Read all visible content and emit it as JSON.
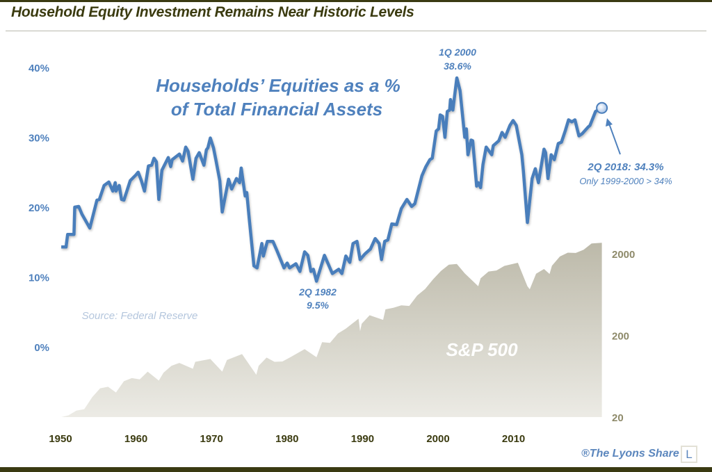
{
  "header": {
    "title": "Household Equity Investment Remains Near Historic Levels"
  },
  "footer": {
    "credit": "®The Lyons Share",
    "logo_letter": "L"
  },
  "colors": {
    "line": "#4a7ebb",
    "area": "#c2c0b3",
    "title": "#3b3b10",
    "left_axis": "#4f81bd",
    "right_axis": "#8e8a6a",
    "x_axis": "#3b3b10"
  },
  "chart_data": {
    "type": "line",
    "title": "Households’ Equities as a % of Total Financial Assets",
    "title_lines": [
      "Households’ Equities as a %",
      "of Total Financial Assets"
    ],
    "source": "Source: Federal Reserve",
    "x_ticks": [
      "1950",
      "1960",
      "1970",
      "1980",
      "1990",
      "2000",
      "2010"
    ],
    "xlim": [
      1950,
      2019
    ],
    "y_left": {
      "ticks": [
        "0%",
        "10%",
        "20%",
        "30%",
        "40%"
      ],
      "values": [
        0,
        10,
        20,
        30,
        40
      ],
      "ylim": [
        0,
        40
      ]
    },
    "y_right": {
      "scale": "log",
      "ticks": [
        "20",
        "200",
        "2000"
      ],
      "values": [
        20,
        200,
        2000
      ]
    },
    "grid": false,
    "series": [
      {
        "name": "Households' Equities % of Total Financial Assets",
        "axis": "left",
        "type": "line",
        "points": [
          [
            1950.1,
            14.4
          ],
          [
            1950.7,
            14.4
          ],
          [
            1950.9,
            16.2
          ],
          [
            1951.7,
            16.2
          ],
          [
            1951.8,
            20.1
          ],
          [
            1952.3,
            20.2
          ],
          [
            1952.7,
            19.1
          ],
          [
            1953.7,
            17.1
          ],
          [
            1954.6,
            21.1
          ],
          [
            1954.9,
            21.2
          ],
          [
            1955.5,
            23.2
          ],
          [
            1956.1,
            23.7
          ],
          [
            1956.6,
            22.4
          ],
          [
            1956.9,
            23.6
          ],
          [
            1957.0,
            22.4
          ],
          [
            1957.4,
            23.2
          ],
          [
            1957.7,
            21.2
          ],
          [
            1958.0,
            21.1
          ],
          [
            1958.8,
            23.9
          ],
          [
            1959.5,
            24.7
          ],
          [
            1959.8,
            25.1
          ],
          [
            1960.2,
            23.9
          ],
          [
            1960.6,
            22.4
          ],
          [
            1961.1,
            26.0
          ],
          [
            1961.5,
            26.1
          ],
          [
            1961.8,
            27.1
          ],
          [
            1962.1,
            26.6
          ],
          [
            1962.4,
            21.2
          ],
          [
            1962.8,
            25.4
          ],
          [
            1963.6,
            27.2
          ],
          [
            1963.9,
            25.9
          ],
          [
            1964.1,
            26.9
          ],
          [
            1965.0,
            27.7
          ],
          [
            1965.4,
            26.7
          ],
          [
            1965.8,
            28.7
          ],
          [
            1966.1,
            28.1
          ],
          [
            1966.7,
            24.1
          ],
          [
            1967.1,
            27.1
          ],
          [
            1967.5,
            27.9
          ],
          [
            1968.1,
            26.1
          ],
          [
            1968.4,
            28.3
          ],
          [
            1968.6,
            28.6
          ],
          [
            1968.9,
            30.0
          ],
          [
            1969.3,
            28.6
          ],
          [
            1969.6,
            26.9
          ],
          [
            1970.1,
            23.9
          ],
          [
            1970.4,
            19.4
          ],
          [
            1971.2,
            24.1
          ],
          [
            1971.6,
            22.7
          ],
          [
            1972.2,
            24.2
          ],
          [
            1972.6,
            23.6
          ],
          [
            1972.8,
            25.7
          ],
          [
            1973.3,
            21.7
          ],
          [
            1973.5,
            22.2
          ],
          [
            1973.8,
            18.6
          ],
          [
            1974.4,
            11.7
          ],
          [
            1974.8,
            11.4
          ],
          [
            1975.4,
            14.9
          ],
          [
            1975.6,
            13.1
          ],
          [
            1976.1,
            15.2
          ],
          [
            1976.8,
            15.2
          ],
          [
            1977.3,
            13.9
          ],
          [
            1978.2,
            11.4
          ],
          [
            1978.6,
            12.1
          ],
          [
            1978.9,
            11.4
          ],
          [
            1979.7,
            12.0
          ],
          [
            1980.2,
            10.9
          ],
          [
            1980.8,
            13.7
          ],
          [
            1981.2,
            13.2
          ],
          [
            1981.6,
            10.9
          ],
          [
            1981.9,
            11.2
          ],
          [
            1982.3,
            9.5
          ],
          [
            1983.3,
            13.2
          ],
          [
            1984.3,
            10.6
          ],
          [
            1985.1,
            11.2
          ],
          [
            1985.5,
            10.6
          ],
          [
            1986.0,
            13.1
          ],
          [
            1986.5,
            12.2
          ],
          [
            1986.9,
            14.9
          ],
          [
            1987.4,
            15.2
          ],
          [
            1987.8,
            12.6
          ],
          [
            1988.4,
            13.4
          ],
          [
            1989.1,
            14.1
          ],
          [
            1989.7,
            15.6
          ],
          [
            1990.2,
            14.9
          ],
          [
            1990.5,
            12.6
          ],
          [
            1990.9,
            15.2
          ],
          [
            1991.3,
            15.4
          ],
          [
            1991.8,
            17.7
          ],
          [
            1992.4,
            17.6
          ],
          [
            1993.0,
            19.9
          ],
          [
            1993.7,
            21.2
          ],
          [
            1994.3,
            20.2
          ],
          [
            1994.7,
            20.6
          ],
          [
            1995.6,
            24.6
          ],
          [
            1996.1,
            25.9
          ],
          [
            1996.6,
            26.9
          ],
          [
            1996.9,
            27.1
          ],
          [
            1997.4,
            31.0
          ],
          [
            1997.7,
            31.3
          ],
          [
            1997.9,
            33.3
          ],
          [
            1998.2,
            33.1
          ],
          [
            1998.5,
            30.1
          ],
          [
            1998.8,
            33.8
          ],
          [
            1999.1,
            34.0
          ],
          [
            1999.2,
            35.5
          ],
          [
            1999.5,
            34.0
          ],
          [
            2000.0,
            38.6
          ],
          [
            2000.4,
            36.8
          ],
          [
            2001.0,
            30.1
          ],
          [
            2001.2,
            31.3
          ],
          [
            2001.4,
            27.6
          ],
          [
            2001.8,
            29.7
          ],
          [
            2002.0,
            29.6
          ],
          [
            2002.5,
            23.1
          ],
          [
            2002.7,
            23.6
          ],
          [
            2003.0,
            22.9
          ],
          [
            2003.3,
            26.2
          ],
          [
            2003.7,
            28.7
          ],
          [
            2004.4,
            27.6
          ],
          [
            2004.6,
            28.9
          ],
          [
            2005.3,
            29.6
          ],
          [
            2005.7,
            30.8
          ],
          [
            2006.1,
            30.1
          ],
          [
            2006.7,
            31.8
          ],
          [
            2007.1,
            32.5
          ],
          [
            2007.5,
            31.8
          ],
          [
            2008.2,
            27.6
          ],
          [
            2008.4,
            25.2
          ],
          [
            2008.9,
            17.9
          ],
          [
            2009.5,
            24.2
          ],
          [
            2009.9,
            25.6
          ],
          [
            2010.3,
            23.6
          ],
          [
            2011.0,
            28.4
          ],
          [
            2011.2,
            27.9
          ],
          [
            2011.5,
            24.2
          ],
          [
            2011.9,
            27.6
          ],
          [
            2012.3,
            26.9
          ],
          [
            2012.8,
            29.2
          ],
          [
            2013.2,
            29.4
          ],
          [
            2013.7,
            31.1
          ],
          [
            2014.1,
            32.6
          ],
          [
            2014.5,
            32.3
          ],
          [
            2014.9,
            32.6
          ],
          [
            2015.4,
            30.3
          ],
          [
            2015.8,
            30.6
          ],
          [
            2016.6,
            31.6
          ],
          [
            2016.8,
            31.8
          ],
          [
            2017.5,
            33.8
          ],
          [
            2018.3,
            34.3
          ]
        ]
      },
      {
        "name": "S&P 500",
        "axis": "right",
        "type": "area",
        "points": [
          [
            1950.1,
            17
          ],
          [
            1951,
            21
          ],
          [
            1952,
            24
          ],
          [
            1953,
            25
          ],
          [
            1954,
            35
          ],
          [
            1955,
            45
          ],
          [
            1956,
            47
          ],
          [
            1957,
            40
          ],
          [
            1958,
            55
          ],
          [
            1959,
            60
          ],
          [
            1960,
            58
          ],
          [
            1961,
            72
          ],
          [
            1962.4,
            56
          ],
          [
            1963,
            70
          ],
          [
            1964,
            85
          ],
          [
            1965,
            92
          ],
          [
            1966.7,
            78
          ],
          [
            1967,
            95
          ],
          [
            1968.9,
            103
          ],
          [
            1970.4,
            72
          ],
          [
            1971,
            100
          ],
          [
            1972.9,
            118
          ],
          [
            1974.7,
            66
          ],
          [
            1975,
            85
          ],
          [
            1976,
            107
          ],
          [
            1977,
            95
          ],
          [
            1978,
            96
          ],
          [
            1979,
            108
          ],
          [
            1980.8,
            136
          ],
          [
            1982.3,
            108
          ],
          [
            1983,
            165
          ],
          [
            1984,
            162
          ],
          [
            1985,
            211
          ],
          [
            1986,
            242
          ],
          [
            1987.6,
            320
          ],
          [
            1987.8,
            225
          ],
          [
            1988,
            278
          ],
          [
            1989,
            353
          ],
          [
            1990.7,
            310
          ],
          [
            1991,
            417
          ],
          [
            1992,
            436
          ],
          [
            1993,
            466
          ],
          [
            1994,
            459
          ],
          [
            1995,
            616
          ],
          [
            1996,
            740
          ],
          [
            1997,
            970
          ],
          [
            1998,
            1229
          ],
          [
            1999,
            1469
          ],
          [
            2000,
            1500
          ],
          [
            2001,
            1148
          ],
          [
            2002.7,
            800
          ],
          [
            2003,
            1000
          ],
          [
            2004,
            1212
          ],
          [
            2005,
            1248
          ],
          [
            2006,
            1418
          ],
          [
            2007.7,
            1550
          ],
          [
            2008.9,
            800
          ],
          [
            2009.2,
            735
          ],
          [
            2010,
            1140
          ],
          [
            2011,
            1300
          ],
          [
            2011.7,
            1130
          ],
          [
            2012,
            1426
          ],
          [
            2013,
            1848
          ],
          [
            2014,
            2059
          ],
          [
            2015,
            2044
          ],
          [
            2016,
            2239
          ],
          [
            2017,
            2674
          ],
          [
            2018.3,
            2718
          ]
        ],
        "label": "S&P 500"
      }
    ],
    "annotations": [
      {
        "line1": "1Q 2000",
        "line2": "38.6%",
        "x": 2000.0,
        "y": 38.6
      },
      {
        "line1": "2Q 1982",
        "line2": "9.5%",
        "x": 1982.3,
        "y": 9.5
      },
      {
        "line1": "2Q 2018: 34.3%",
        "line2": "Only 1999-2000 > 34%",
        "x": 2018.3,
        "y": 34.3
      }
    ]
  }
}
